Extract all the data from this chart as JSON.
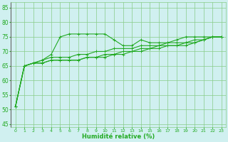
{
  "xlabel": "Humidité relative (%)",
  "xlim": [
    -0.5,
    23.5
  ],
  "ylim": [
    44,
    87
  ],
  "yticks": [
    45,
    50,
    55,
    60,
    65,
    70,
    75,
    80,
    85
  ],
  "xticks": [
    0,
    1,
    2,
    3,
    4,
    5,
    6,
    7,
    8,
    9,
    10,
    11,
    12,
    13,
    14,
    15,
    16,
    17,
    18,
    19,
    20,
    21,
    22,
    23
  ],
  "bg_color": "#d0f0f0",
  "grid_color": "#88cc88",
  "line_color": "#22aa22",
  "lines": [
    [
      51,
      65,
      66,
      67,
      69,
      75,
      76,
      76,
      76,
      76,
      76,
      74,
      72,
      72,
      74,
      73,
      73,
      73,
      74,
      75,
      75,
      75,
      75,
      75
    ],
    [
      51,
      65,
      66,
      67,
      68,
      68,
      68,
      69,
      69,
      70,
      70,
      71,
      71,
      71,
      72,
      72,
      72,
      73,
      73,
      73,
      74,
      74,
      75,
      75
    ],
    [
      51,
      65,
      66,
      66,
      67,
      67,
      67,
      67,
      68,
      68,
      68,
      69,
      69,
      70,
      70,
      71,
      71,
      72,
      72,
      72,
      73,
      74,
      75,
      75
    ],
    [
      51,
      65,
      66,
      66,
      67,
      67,
      67,
      67,
      68,
      68,
      69,
      69,
      70,
      70,
      71,
      71,
      72,
      72,
      72,
      73,
      73,
      74,
      75,
      75
    ]
  ],
  "marker": "+"
}
